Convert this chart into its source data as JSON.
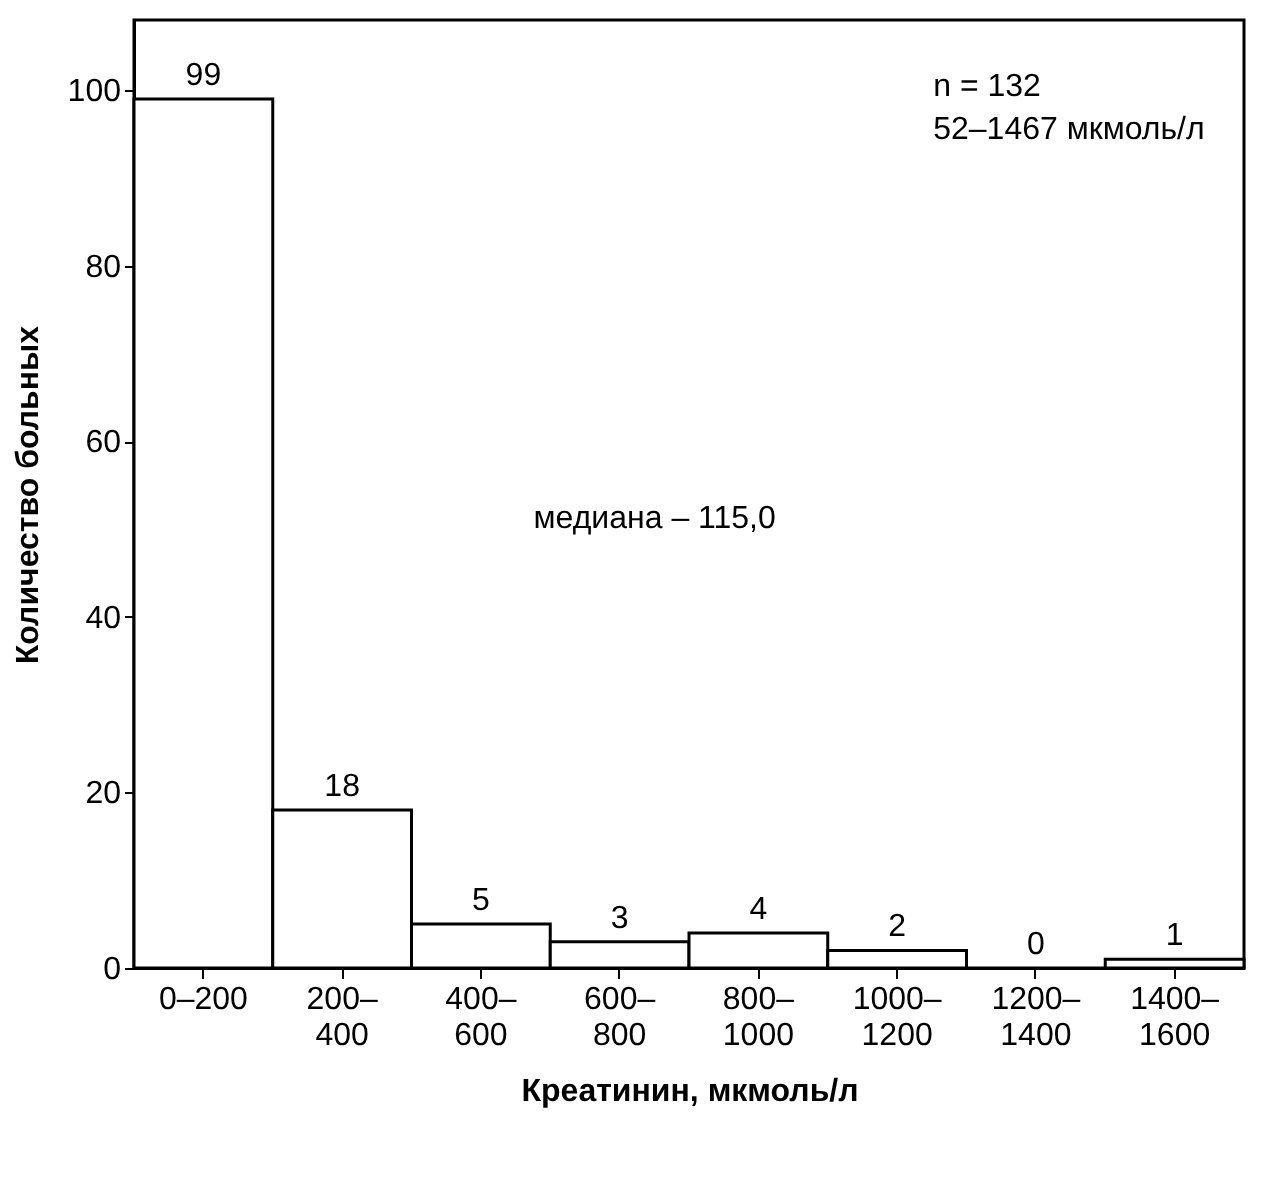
{
  "chart_data": {
    "type": "bar",
    "xlabel": "Креатинин, мкмоль/л",
    "ylabel": "Количество больных",
    "categories": [
      "0–200",
      "200–400",
      "400–600",
      "600–800",
      "800–1000",
      "1000–1200",
      "1200–1400",
      "1400–1600"
    ],
    "values": [
      99,
      18,
      5,
      3,
      4,
      2,
      0,
      1
    ],
    "color": "#ffffff",
    "ylim": [
      0,
      108
    ],
    "yticks": [
      0,
      20,
      40,
      60,
      80,
      100
    ],
    "grid": false,
    "data_labels": true,
    "annotations": [
      "n = 132",
      "52–1467 мкмоль/л",
      "медиана – 115,0"
    ]
  }
}
